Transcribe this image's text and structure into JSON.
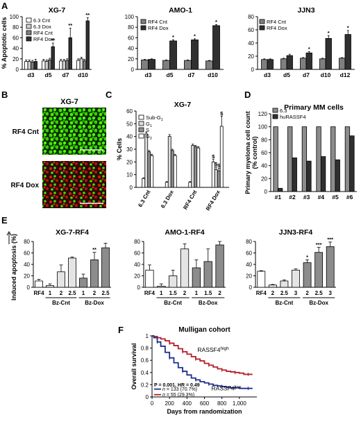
{
  "panel_letters": [
    "A",
    "B",
    "C",
    "D",
    "E",
    "F"
  ],
  "micro": {
    "title": "XG-7",
    "rows": [
      "RF4 Cnt",
      "RF4 Dox"
    ]
  },
  "chart_data": [
    {
      "id": "A1",
      "type": "bar",
      "title": "XG-7",
      "ylabel": "% Apoptotic cells",
      "ylim": [
        0,
        100
      ],
      "yticks": [
        0,
        20,
        40,
        60,
        80,
        100
      ],
      "categories": [
        "d3",
        "d5",
        "d7",
        "d10"
      ],
      "legend": "top-left",
      "series": [
        {
          "name": "6.3 Cnt",
          "color": "#ffffff",
          "values": [
            15,
            16,
            16,
            17
          ],
          "errors": [
            3,
            3,
            3,
            3
          ]
        },
        {
          "name": "6.3 Dox",
          "color": "#cfcfcf",
          "values": [
            15,
            15,
            16,
            20
          ],
          "errors": [
            3,
            3,
            3,
            3
          ]
        },
        {
          "name": "RF4 Cnt",
          "color": "#7f7f7f",
          "values": [
            14,
            18,
            17,
            16
          ],
          "errors": [
            3,
            3,
            3,
            3
          ]
        },
        {
          "name": "RF4 Dox",
          "color": "#303030",
          "values": [
            15,
            43,
            60,
            92
          ],
          "errors": [
            4,
            7,
            18,
            6
          ]
        }
      ],
      "annotations": [
        {
          "series": 3,
          "index": 1,
          "text": "**"
        },
        {
          "series": 3,
          "index": 2,
          "text": "**"
        },
        {
          "series": 3,
          "index": 3,
          "text": "**"
        }
      ]
    },
    {
      "id": "A2",
      "type": "bar",
      "title": "AMO-1",
      "ylabel": "",
      "ylim": [
        0,
        100
      ],
      "yticks": [
        0,
        20,
        40,
        60,
        80,
        100
      ],
      "categories": [
        "d3",
        "d5",
        "d7",
        "d10"
      ],
      "legend": "top-left",
      "series": [
        {
          "name": "RF4 Cnt",
          "color": "#7f7f7f",
          "values": [
            18,
            17,
            17,
            16
          ],
          "errors": [
            1,
            1,
            1,
            1
          ]
        },
        {
          "name": "RF4 Dox",
          "color": "#303030",
          "values": [
            19,
            54,
            56,
            83
          ],
          "errors": [
            1,
            2,
            2,
            2
          ]
        }
      ],
      "annotations": [
        {
          "series": 1,
          "index": 1,
          "text": "*"
        },
        {
          "series": 1,
          "index": 2,
          "text": "*"
        },
        {
          "series": 1,
          "index": 3,
          "text": "*"
        }
      ]
    },
    {
      "id": "A3",
      "type": "bar",
      "title": "JJN3",
      "ylabel": "",
      "ylim": [
        0,
        80
      ],
      "yticks": [
        0,
        20,
        40,
        60,
        80
      ],
      "categories": [
        "d3",
        "d5",
        "d7",
        "d10",
        "d12"
      ],
      "legend": "top-left",
      "series": [
        {
          "name": "RF4 Cnt",
          "color": "#7f7f7f",
          "values": [
            15,
            16,
            17,
            16,
            17
          ],
          "errors": [
            1,
            1,
            1,
            1,
            1
          ]
        },
        {
          "name": "RF4 Dox",
          "color": "#303030",
          "values": [
            15,
            21,
            25,
            47,
            53
          ],
          "errors": [
            1,
            2,
            2,
            4,
            6
          ]
        }
      ],
      "annotations": [
        {
          "series": 1,
          "index": 2,
          "text": "*"
        },
        {
          "series": 1,
          "index": 3,
          "text": "*"
        },
        {
          "series": 1,
          "index": 4,
          "text": "*"
        }
      ]
    },
    {
      "id": "C",
      "type": "bar",
      "title": "XG-7",
      "ylabel": "% Cells",
      "ylim": [
        0,
        60
      ],
      "yticks": [
        0,
        10,
        20,
        30,
        40,
        50,
        60
      ],
      "categories": [
        "6.3 Cnt",
        "6.3 Dox",
        "RF4 Cnt",
        "RF4 Dox"
      ],
      "rotate_ticks": true,
      "legend": "top-left",
      "series": [
        {
          "name": "Sub-G",
          "sub": "1",
          "color": "#ffffff",
          "values": [
            7,
            4,
            4,
            20
          ],
          "errors": [
            0.5,
            0.5,
            0.5,
            2
          ]
        },
        {
          "name": "G",
          "sub": "1",
          "color": "#dcdcdc",
          "values": [
            42,
            40,
            33,
            14
          ],
          "errors": [
            1.5,
            1.5,
            1,
            2
          ]
        },
        {
          "name": "S",
          "color": "#909090",
          "values": [
            28,
            29,
            32,
            13
          ],
          "errors": [
            1,
            1,
            1,
            2
          ]
        },
        {
          "name": "G",
          "sub": "2",
          "color": "#ffffff",
          "values": [
            25,
            25,
            31,
            48
          ],
          "errors": [
            1,
            1,
            1,
            8
          ]
        }
      ],
      "annotations": [
        {
          "series": 0,
          "index": 3,
          "text": "$"
        },
        {
          "series": 1,
          "index": 3,
          "text": "$"
        },
        {
          "series": 2,
          "index": 3,
          "text": "$"
        },
        {
          "series": 3,
          "index": 3,
          "text": "$"
        }
      ]
    },
    {
      "id": "D",
      "type": "bar",
      "title": "Primary MM cells",
      "ylabel": "Primary myeloma cell count (% control)",
      "ylim": [
        0,
        120
      ],
      "yticks": [
        0,
        20,
        40,
        60,
        80,
        100,
        120
      ],
      "categories": [
        "#1",
        "#2",
        "#3",
        "#4",
        "#5",
        "#6"
      ],
      "legend": "top-left",
      "series": [
        {
          "name": "6.3",
          "color": "#8c8c8c",
          "values": [
            100,
            100,
            100,
            100,
            100,
            100
          ]
        },
        {
          "name": "huRASSF4",
          "color": "#303030",
          "values": [
            5,
            52,
            47,
            54,
            49,
            86
          ]
        }
      ]
    },
    {
      "id": "E1",
      "type": "bar",
      "title": "XG-7-RF4",
      "ylabel": "Induced apoptosis (%)",
      "ylim": [
        0,
        80
      ],
      "yticks": [
        0,
        20,
        40,
        60,
        80
      ],
      "categories": [
        "RF4",
        "1",
        "2",
        "2.5",
        "1",
        "2",
        "2.5"
      ],
      "colors": [
        "#ffffff",
        "#e4e4e4",
        "#e4e4e4",
        "#e4e4e4",
        "#8c8c8c",
        "#8c8c8c",
        "#8c8c8c"
      ],
      "values": [
        11,
        3,
        27,
        51,
        16,
        48,
        69
      ],
      "errors": [
        3,
        3,
        12,
        2,
        7,
        13,
        8
      ],
      "groups": [
        {
          "label": "Bz-Cnt",
          "start": 1,
          "end": 3
        },
        {
          "label": "Bz-Dox",
          "start": 4,
          "end": 6
        }
      ],
      "annotations": [
        {
          "index": 5,
          "text": "**"
        }
      ]
    },
    {
      "id": "E2",
      "type": "bar",
      "title": "AMO-1-RF4",
      "ylabel": "",
      "ylim": [
        0,
        80
      ],
      "yticks": [
        0,
        20,
        40,
        60,
        80
      ],
      "categories": [
        "RF4",
        "1",
        "1.5",
        "2",
        "1",
        "1.5",
        "2"
      ],
      "colors": [
        "#ffffff",
        "#e4e4e4",
        "#e4e4e4",
        "#e4e4e4",
        "#8c8c8c",
        "#8c8c8c",
        "#8c8c8c"
      ],
      "values": [
        30,
        2,
        20,
        67,
        34,
        45,
        74
      ],
      "errors": [
        9,
        4,
        10,
        9,
        14,
        22,
        6
      ],
      "groups": [
        {
          "label": "Bz-Cnt",
          "start": 1,
          "end": 3
        },
        {
          "label": "Bz-Dox",
          "start": 4,
          "end": 6
        }
      ]
    },
    {
      "id": "E3",
      "type": "bar",
      "title": "JJN3-RF4",
      "ylabel": "",
      "ylim": [
        0,
        80
      ],
      "yticks": [
        0,
        20,
        40,
        60,
        80
      ],
      "categories": [
        "RF4",
        "2",
        "2.5",
        "3",
        "2",
        "2.5",
        "3"
      ],
      "colors": [
        "#ffffff",
        "#e4e4e4",
        "#e4e4e4",
        "#e4e4e4",
        "#8c8c8c",
        "#8c8c8c",
        "#8c8c8c"
      ],
      "values": [
        28,
        4,
        11,
        30,
        43,
        61,
        71
      ],
      "errors": [
        1,
        1,
        2,
        2,
        5,
        9,
        8
      ],
      "groups": [
        {
          "label": "Bz-Cnt",
          "start": 1,
          "end": 3
        },
        {
          "label": "Bz-Dox",
          "start": 4,
          "end": 6
        }
      ],
      "annotations": [
        {
          "index": 4,
          "text": "*"
        },
        {
          "index": 5,
          "text": "***"
        },
        {
          "index": 6,
          "text": "***"
        }
      ]
    },
    {
      "id": "F",
      "type": "line",
      "title": "Mulligan cohort",
      "xlabel": "Days from randomization",
      "ylabel": "Overall survival",
      "xlim": [
        0,
        1200
      ],
      "ylim": [
        0,
        1.0
      ],
      "xticks": [
        0,
        200,
        400,
        600,
        800,
        "1,000"
      ],
      "yticks": [
        0,
        0.2,
        0.4,
        0.6,
        0.8,
        1.0
      ],
      "stats": "P = 0.001, HR = 0.49",
      "series": [
        {
          "name": "RASSF4high",
          "color": "#b3202a",
          "x": [
            0,
            20,
            60,
            100,
            150,
            200,
            250,
            300,
            350,
            400,
            450,
            500,
            550,
            600,
            650,
            700,
            750,
            800,
            850,
            900,
            950,
            1000,
            1050,
            1100,
            1150
          ],
          "y": [
            1.0,
            0.99,
            0.97,
            0.95,
            0.92,
            0.88,
            0.84,
            0.79,
            0.74,
            0.7,
            0.66,
            0.62,
            0.59,
            0.55,
            0.52,
            0.49,
            0.46,
            0.44,
            0.42,
            0.41,
            0.4,
            0.39,
            0.37,
            0.37,
            0.37
          ]
        },
        {
          "name": "RASSF4low",
          "color": "#1c2f8c",
          "x": [
            0,
            20,
            60,
            100,
            150,
            200,
            250,
            300,
            350,
            400,
            450,
            500,
            550,
            600,
            650,
            700,
            750,
            800,
            850,
            900,
            950,
            1000,
            1050,
            1100,
            1150
          ],
          "y": [
            1.0,
            0.97,
            0.9,
            0.83,
            0.73,
            0.64,
            0.56,
            0.48,
            0.42,
            0.36,
            0.31,
            0.28,
            0.25,
            0.23,
            0.21,
            0.19,
            0.18,
            0.17,
            0.16,
            0.15,
            0.15,
            0.14,
            0.14,
            0.14,
            0.14
          ]
        }
      ],
      "legend": [
        {
          "n": "n",
          "text": " = 133 (70.7%)",
          "color": "#1c2f8c"
        },
        {
          "n": "n",
          "text": " = 55 (29.3%)",
          "color": "#b3202a"
        }
      ],
      "labels": [
        {
          "base": "RASSF4",
          "sup": "high",
          "x": 700,
          "y": 0.74
        },
        {
          "base": "RASSF4",
          "sup": "low",
          "x": 850,
          "y": 0.11
        }
      ]
    }
  ]
}
